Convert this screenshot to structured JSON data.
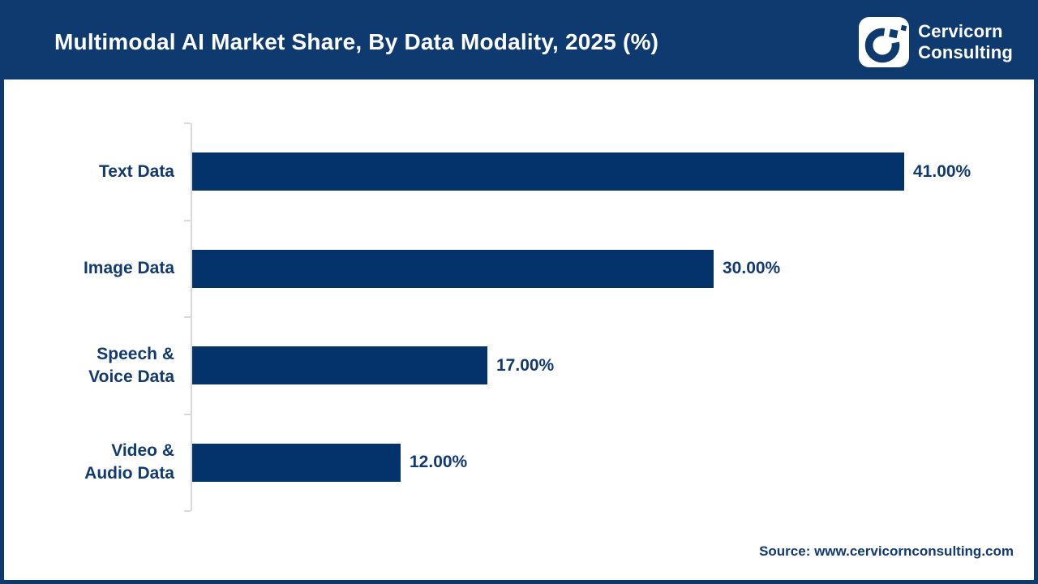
{
  "header": {
    "title": "Multimodal AI Market Share, By Data Modality, 2025 (%)",
    "logo": {
      "line1": "Cervicorn",
      "line2": "Consulting"
    }
  },
  "chart_data": {
    "type": "bar",
    "orientation": "horizontal",
    "title": "Multimodal AI Market Share, By Data Modality, 2025 (%)",
    "categories": [
      "Text Data",
      "Image Data",
      "Speech & Voice Data",
      "Video & Audio Data"
    ],
    "category_label_lines": [
      [
        "Text Data"
      ],
      [
        "Image Data"
      ],
      [
        "Speech &",
        "Voice Data"
      ],
      [
        "Video &",
        "Audio Data"
      ]
    ],
    "values": [
      41,
      30,
      17,
      12
    ],
    "value_labels": [
      "41.00%",
      "30.00%",
      "17.00%",
      "12.00%"
    ],
    "unit": "%",
    "xlabel": "",
    "ylabel": "",
    "xlim": [
      0,
      47.7
    ],
    "grid": false,
    "legend": false,
    "bar_color": "#04336B"
  },
  "footer": {
    "source": "Source: www.cervicornconsulting.com"
  },
  "colors": {
    "header_bg": "#0E3A70",
    "border": "#0E3A70",
    "bar": "#04336B",
    "text_navy": "#123A70",
    "axis": "#D9D9D9",
    "title_text": "#FFFFFF"
  }
}
